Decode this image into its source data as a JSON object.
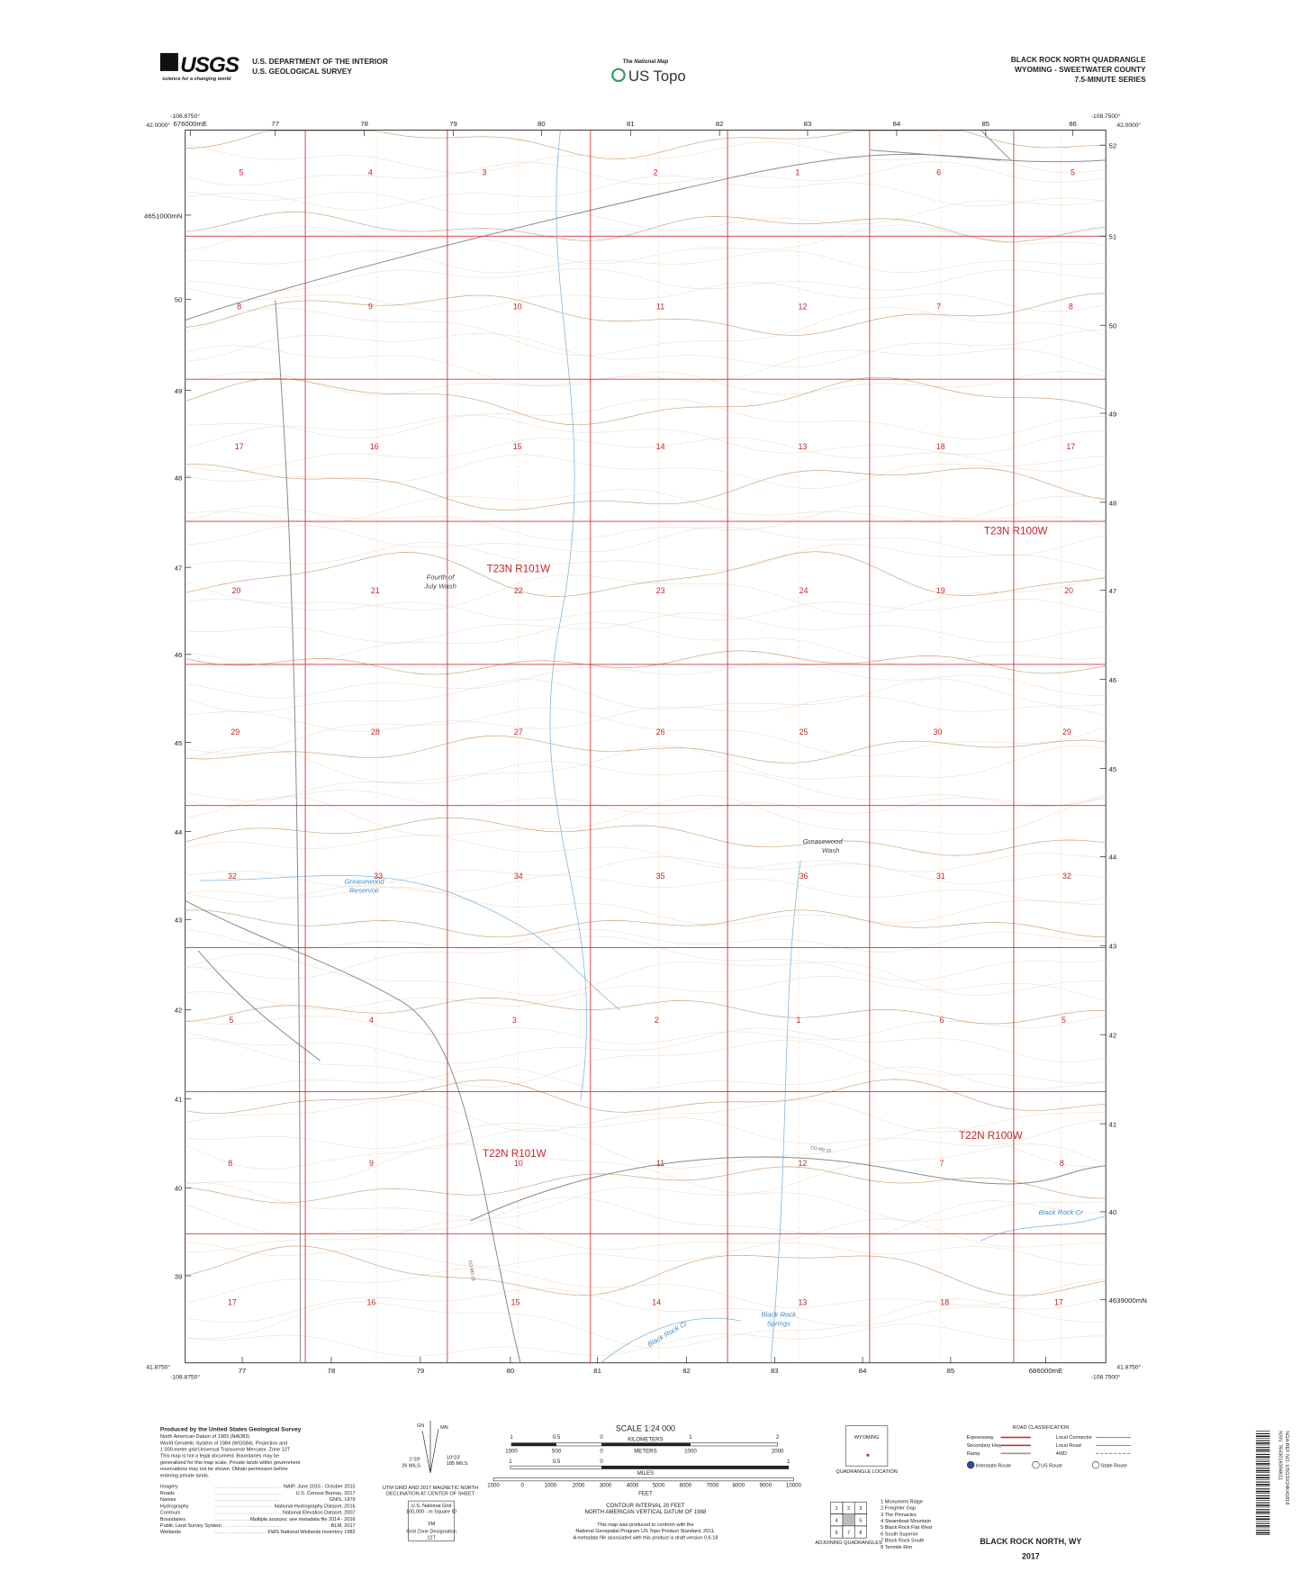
{
  "header": {
    "agency_logo": "USGS",
    "logo_tagline": "science for a changing world",
    "department": "U.S. DEPARTMENT OF THE INTERIOR",
    "survey": "U.S. GEOLOGICAL SURVEY",
    "program": "The National Map",
    "product": "US Topo",
    "quadrangle": "BLACK ROCK NORTH QUADRANGLE",
    "state_county": "WYOMING - SWEETWATER COUNTY",
    "series": "7.5-MINUTE SERIES"
  },
  "corners": {
    "west_lon": "-108.8750°",
    "east_lon": "-108.7500°",
    "north_lat": "42.0000°",
    "south_lat": "41.8750°"
  },
  "grid": {
    "eastings_top": [
      "676000mE",
      "77",
      "78",
      "79",
      "80",
      "81",
      "82",
      "83",
      "84",
      "85",
      "86"
    ],
    "eastings_bottom": [
      "77",
      "78",
      "79",
      "80",
      "81",
      "82",
      "83",
      "84",
      "85",
      "686000mE"
    ],
    "northings_left": [
      "4651000mN",
      "50",
      "49",
      "48",
      "47",
      "46",
      "45",
      "44",
      "43",
      "42",
      "41",
      "40",
      "39"
    ],
    "northings_right": [
      "52",
      "51",
      "50",
      "49",
      "48",
      "47",
      "46",
      "45",
      "44",
      "43",
      "42",
      "41",
      "40",
      "4639000mN"
    ]
  },
  "sections": [
    [
      "5",
      "4",
      "3",
      "2",
      "1",
      "6",
      "5"
    ],
    [
      "8",
      "9",
      "10",
      "11",
      "12",
      "7",
      "8"
    ],
    [
      "17",
      "16",
      "15",
      "14",
      "13",
      "18",
      "17"
    ],
    [
      "20",
      "21",
      "22",
      "23",
      "24",
      "19",
      "20"
    ],
    [
      "29",
      "28",
      "27",
      "26",
      "25",
      "30",
      "29"
    ],
    [
      "32",
      "33",
      "34",
      "35",
      "36",
      "31",
      "32"
    ],
    [
      "5",
      "4",
      "3",
      "2",
      "1",
      "6",
      "5"
    ],
    [
      "8",
      "9",
      "10",
      "11",
      "12",
      "7",
      "8"
    ],
    [
      "17",
      "16",
      "15",
      "14",
      "13",
      "18",
      "17"
    ]
  ],
  "townships": [
    "T23N R101W",
    "T23N R100W",
    "T22N R101W",
    "T22N R100W"
  ],
  "places": [
    "Fourth of",
    "July Wash",
    "Greasewood",
    "Wash",
    "Greasewood",
    "Reservoir",
    "Black Rock Cr",
    "Black Rock Cr",
    "Black Rock",
    "Springs"
  ],
  "roads": [
    "CO RD 15",
    "CO RD 15"
  ],
  "footer": {
    "credits": {
      "heading": "Produced by the United States Geological Survey",
      "lines": [
        "North American Datum of 1983 (NAD83)",
        "World Geodetic System of 1984 (WGS84). Projection and",
        "1 000-meter grid:Universal Transverse Mercator, Zone 12T",
        "This map is not a legal document. Boundaries may be",
        "generalized for this map scale. Private lands within government",
        "reservations may not be shown. Obtain permission before",
        "entering private lands."
      ]
    },
    "sources": [
      {
        "layer": "Imagery",
        "source": "NAIP, June 2015 - October 2015"
      },
      {
        "layer": "Roads",
        "source": "U.S. Census Bureau, 2017"
      },
      {
        "layer": "Names",
        "source": "GNIS, 1979"
      },
      {
        "layer": "Hydrography",
        "source": "National Hydrography Dataset, 2016"
      },
      {
        "layer": "Contours",
        "source": "National Elevation Dataset, 2007"
      },
      {
        "layer": "Boundaries",
        "source": "Multiple sources; see metadata file 2014 - 2016"
      },
      {
        "layer": "Public Land Survey System",
        "source": "BLM, 2017"
      },
      {
        "layer": "Wetlands",
        "source": "FWS National Wetlands Inventory 1982"
      }
    ],
    "declination": {
      "mn": "MN",
      "gn": "GN",
      "mn_angle": "1°29'",
      "mn_mils": "26 MILS",
      "gn_angle": "10°23'",
      "gn_mils": "185 MILS",
      "caption": [
        "UTM GRID AND 2017 MAGNETIC NORTH",
        "DECLINATION AT CENTER OF SHEET"
      ]
    },
    "usng": {
      "title": "U.S. National Grid",
      "square_label": "100,000 - m Square ID",
      "square": "XM",
      "zone_label": "Grid Zone Designation",
      "zone": "12T"
    },
    "scale": {
      "title": "SCALE 1:24 000",
      "km_unit": "KILOMETERS",
      "m_unit": "METERS",
      "mi_unit": "MILES",
      "ft_unit": "FEET",
      "km": [
        "1",
        "0.5",
        "0",
        "1",
        "2"
      ],
      "m": [
        "1000",
        "500",
        "0",
        "1000",
        "2000"
      ],
      "mi": [
        "1",
        "0.5",
        "0",
        "1"
      ],
      "ft": [
        "1000",
        "0",
        "1000",
        "2000",
        "3000",
        "4000",
        "5000",
        "6000",
        "7000",
        "8000",
        "9000",
        "10000"
      ]
    },
    "notes": [
      "CONTOUR INTERVAL 20 FEET",
      "NORTH AMERICAN VERTICAL DATUM OF 1988",
      "This map was produced to conform with the",
      "National Geospatial Program US Topo Product Standard, 2011.",
      "A metadata file associated with this product is draft version 0.6.18"
    ],
    "locator": {
      "state": "WYOMING",
      "caption": "QUADRANGLE LOCATION"
    },
    "roads_legend": {
      "title": "ROAD CLASSIFICATION",
      "left": [
        "Expressway",
        "Secondary Hwy",
        "Ramp"
      ],
      "right": [
        "Local Connector",
        "Local Road",
        "4WD"
      ],
      "shields": [
        "Interstate Route",
        "US Route",
        "State Route"
      ]
    },
    "adjoining": {
      "cells": [
        "1",
        "2",
        "3",
        "4",
        "5",
        "6",
        "7",
        "8"
      ],
      "names": [
        "1 Monument Ridge",
        "2 Freighter Gap",
        "3 The Pinnacles",
        "4 Steamboat Mountain",
        "5 Black Rock Flat West",
        "6 South Superior",
        "7 Black Rock South",
        "8 Tenmile Rim"
      ],
      "caption": "ADJOINING QUADRANGLES"
    },
    "title": "BLACK ROCK NORTH, WY",
    "year": "2017",
    "barcode": [
      "NSN. 7643016394611",
      "NGA REF NO. USGSX24K41818"
    ]
  }
}
